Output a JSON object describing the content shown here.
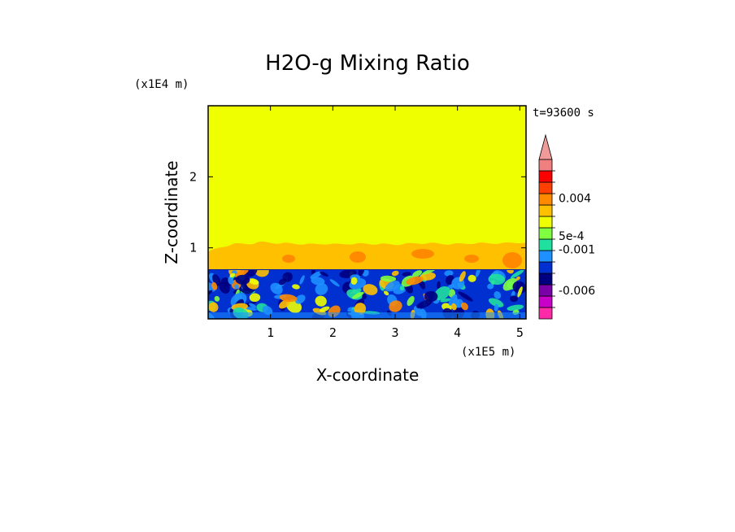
{
  "chart_data": {
    "type": "heatmap",
    "title": "H2O-g Mixing Ratio",
    "xlabel": "X-coordinate",
    "ylabel": "Z-coordinate",
    "x_scale_label": "(x1E5 m)",
    "y_scale_label": "(x1E4 m)",
    "time_label": "t=93600 s",
    "xlim": [
      0,
      5.1
    ],
    "ylim": [
      0,
      3.0
    ],
    "x_ticks": [
      {
        "value": 1,
        "label": "1"
      },
      {
        "value": 2,
        "label": "2"
      },
      {
        "value": 3,
        "label": "3"
      },
      {
        "value": 4,
        "label": "4"
      },
      {
        "value": 5,
        "label": "5"
      }
    ],
    "y_ticks": [
      {
        "value": 1,
        "label": "1"
      },
      {
        "value": 2,
        "label": "2"
      }
    ],
    "colorbar": {
      "levels": [
        {
          "color": "#ff2aa8"
        },
        {
          "color": "#c800c8"
        },
        {
          "color": "#7a00a8"
        },
        {
          "color": "#000080"
        },
        {
          "color": "#0030d0"
        },
        {
          "color": "#1e90ff"
        },
        {
          "color": "#20e0a0"
        },
        {
          "color": "#80ff40"
        },
        {
          "color": "#f0ff00"
        },
        {
          "color": "#ffc000"
        },
        {
          "color": "#ff8a00"
        },
        {
          "color": "#ff4000"
        },
        {
          "color": "#ff0000"
        },
        {
          "color": "#f08080"
        }
      ],
      "extend_color": "#f09a9a",
      "labels": [
        {
          "text": "-0.006",
          "level_index": 2.5
        },
        {
          "text": "-0.001",
          "level_index": 6.1
        },
        {
          "text": "5e-4",
          "level_index": 7.3
        },
        {
          "text": "0.004",
          "level_index": 10.6
        }
      ]
    },
    "regions": [
      {
        "name": "upper-uniform",
        "z_range": [
          1.05,
          3.0
        ],
        "color": "#f0ff00"
      },
      {
        "name": "orange-transition",
        "z_range": [
          0.7,
          1.05
        ],
        "color": "#ffc000"
      },
      {
        "name": "lower-mixed",
        "z_range": [
          0.0,
          0.7
        ],
        "color": "#0030d0"
      }
    ]
  }
}
